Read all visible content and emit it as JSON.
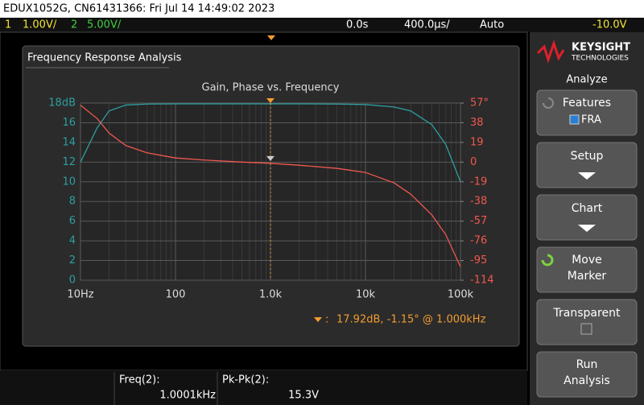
{
  "header": {
    "title": "EDUX1052G, CN61431366: Fri Jul 14 14:49:02 2023"
  },
  "status_bar": {
    "channel_1": "1",
    "channel_1_scale": "1.00V/",
    "channel_2": "2",
    "channel_2_scale": "5.00V/",
    "time_delay": "0.0s",
    "time_scale": "400.0µs/",
    "trigger_mode": "Auto",
    "trigger_level": "-10.0V"
  },
  "panel": {
    "title": "Frequency Response Analysis"
  },
  "chart_data": {
    "type": "line",
    "title": "Gain, Phase vs. Frequency",
    "xlog": true,
    "grid": true,
    "minor_grid": true,
    "x": [
      10,
      15,
      20,
      30,
      50,
      100,
      200,
      500,
      1000,
      2000,
      5000,
      10000,
      20000,
      30000,
      50000,
      70000,
      100000
    ],
    "xlim": [
      10,
      100000
    ],
    "xticks": [
      {
        "value": 10,
        "label": "10Hz"
      },
      100,
      {
        "value": 1000,
        "label": "1.0k"
      },
      {
        "value": 10000,
        "label": "10k"
      },
      {
        "value": 100000,
        "label": "100k"
      }
    ],
    "ylim": [
      0,
      18
    ],
    "yticks": [
      0,
      2,
      4,
      6,
      8,
      10,
      12,
      14,
      16,
      {
        "value": 18,
        "label": "18dB"
      }
    ],
    "y2lim": [
      -114,
      57
    ],
    "y2ticks": [
      -114,
      -95,
      -76,
      -57,
      -38,
      -19,
      0,
      19,
      38,
      {
        "value": 57,
        "label": "57°"
      }
    ],
    "series": [
      {
        "color": "#2f9ea0",
        "values": [
          12.0,
          15.5,
          17.2,
          17.8,
          17.9,
          17.92,
          17.92,
          17.92,
          17.92,
          17.92,
          17.9,
          17.85,
          17.6,
          17.2,
          15.8,
          13.8,
          10.0
        ]
      },
      {
        "color": "#f0584e",
        "axis": "y2",
        "values": [
          55,
          42,
          28,
          16,
          9,
          4,
          2,
          0,
          -1.15,
          -3,
          -6,
          -10,
          -20,
          -31,
          -51,
          -70,
          -101
        ]
      }
    ],
    "marker_x": 1000,
    "marker_label": "17.92dB, -1.15° @ 1.000kHz"
  },
  "softkeys": {
    "brand": "KEYSIGHT",
    "brand_sub": "TECHNOLOGIES",
    "menu_title": "Analyze",
    "buttons": [
      {
        "lines": [
          "Features"
        ],
        "option": "FRA"
      },
      {
        "lines": [
          "Setup"
        ]
      },
      {
        "lines": [
          "Chart"
        ]
      },
      {
        "lines": [
          "Move",
          "Marker"
        ]
      },
      {
        "lines": [
          "Transparent"
        ]
      },
      {
        "lines": [
          "Run",
          "Analysis"
        ]
      }
    ]
  },
  "measurements": [
    {
      "label": "Freq(2):",
      "value": "1.0001kHz"
    },
    {
      "label": "Pk-Pk(2):",
      "value": "15.3V"
    }
  ]
}
